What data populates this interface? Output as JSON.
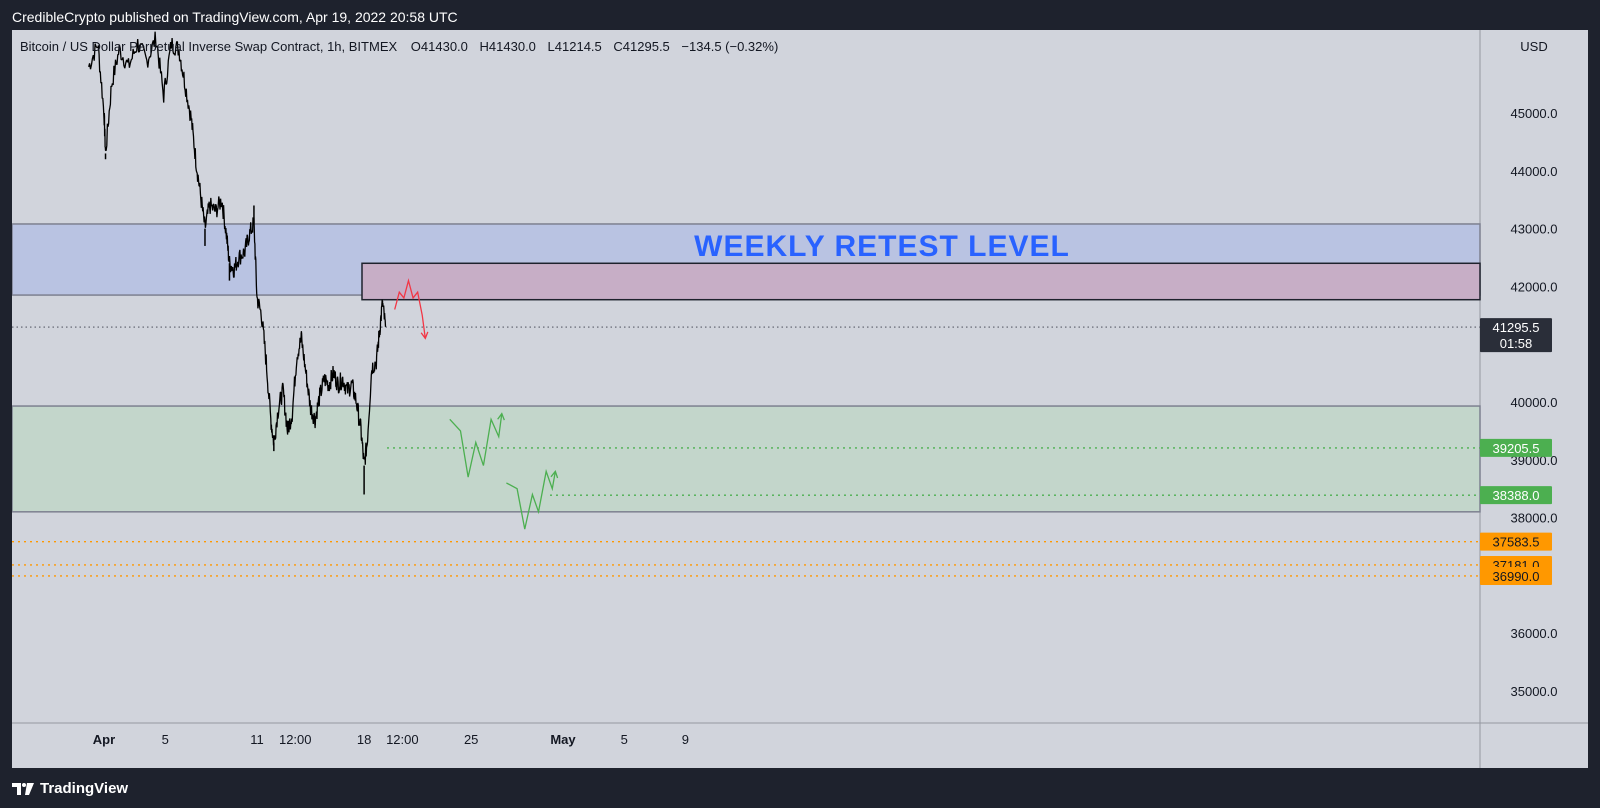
{
  "header": {
    "published": "CredibleCrypto published on TradingView.com, Apr 19, 2022 20:58 UTC"
  },
  "footer": {
    "brand": "TradingView"
  },
  "colors": {
    "background": "#d1d4dc",
    "chrome": "#1e222d",
    "weekly_zone": "#b9c3e2",
    "retest_box": "#c7aec6",
    "support_zone": "#c3d6cb",
    "green_label": "#4caf50",
    "orange_label": "#ff9800",
    "title_blue": "#2962ff",
    "candle": "#000000",
    "red_path": "#f23645",
    "green_path": "#4caf50"
  },
  "chart_data": {
    "type": "candlestick",
    "symbol_line": {
      "name": "Bitcoin / US Dollar Perpetual Inverse Swap Contract, 1h, BITMEX",
      "open": "O41430.0",
      "high": "H41430.0",
      "low": "L41214.5",
      "close": "C41295.5",
      "change": "−134.5 (−0.32%)"
    },
    "currency": "USD",
    "y_axis": {
      "range": [
        34400,
        46300
      ],
      "ticks": [
        "45000.0",
        "44000.0",
        "43000.0",
        "42000.0",
        "40000.0",
        "39000.0",
        "38000.0",
        "36000.0",
        "35000.0"
      ],
      "tick_values": [
        45000,
        44000,
        43000,
        42000,
        40000,
        39000,
        38000,
        36000,
        35000
      ]
    },
    "x_axis": {
      "labels": [
        "Apr",
        "5",
        "11",
        "12:00",
        "18",
        "12:00",
        "25",
        "May",
        "5",
        "9"
      ],
      "label_days": [
        1,
        5,
        11,
        13.5,
        18,
        20.5,
        25,
        31,
        35,
        39
      ],
      "bold": [
        "Apr",
        "May"
      ]
    },
    "zones": [
      {
        "name": "weekly",
        "from": 41850,
        "to": 43080
      },
      {
        "name": "retest-box",
        "from": 41770,
        "to": 42400
      },
      {
        "name": "support",
        "from": 38100,
        "to": 39930
      }
    ],
    "title_annotation": "WEEKLY RETEST LEVEL",
    "price_labels": [
      {
        "value": 41295.5,
        "text": "41295.5",
        "subtext": "01:58",
        "style": "current"
      },
      {
        "value": 39205.5,
        "text": "39205.5",
        "style": "green"
      },
      {
        "value": 38388.0,
        "text": "38388.0",
        "style": "green"
      },
      {
        "value": 37583.5,
        "text": "37583.5",
        "style": "orange"
      },
      {
        "value": 37181.0,
        "text": "37181.0",
        "style": "orange"
      },
      {
        "value": 36990.0,
        "text": "36990.0",
        "style": "orange"
      }
    ],
    "price_path": [
      {
        "d": 0.0,
        "p": 45800
      },
      {
        "d": 0.6,
        "p": 46200
      },
      {
        "d": 1.0,
        "p": 45000
      },
      {
        "d": 1.1,
        "p": 44300
      },
      {
        "d": 1.5,
        "p": 45500
      },
      {
        "d": 2.0,
        "p": 46100
      },
      {
        "d": 2.6,
        "p": 45800
      },
      {
        "d": 3.2,
        "p": 46200
      },
      {
        "d": 3.8,
        "p": 45900
      },
      {
        "d": 4.4,
        "p": 46300
      },
      {
        "d": 4.9,
        "p": 45300
      },
      {
        "d": 5.4,
        "p": 46200
      },
      {
        "d": 5.9,
        "p": 46100
      },
      {
        "d": 6.3,
        "p": 45500
      },
      {
        "d": 6.7,
        "p": 44900
      },
      {
        "d": 7.0,
        "p": 44200
      },
      {
        "d": 7.3,
        "p": 43600
      },
      {
        "d": 7.6,
        "p": 43000
      },
      {
        "d": 7.9,
        "p": 43400
      },
      {
        "d": 8.3,
        "p": 43300
      },
      {
        "d": 8.7,
        "p": 43500
      },
      {
        "d": 9.0,
        "p": 42900
      },
      {
        "d": 9.2,
        "p": 42400
      },
      {
        "d": 9.5,
        "p": 42300
      },
      {
        "d": 9.8,
        "p": 42500
      },
      {
        "d": 10.2,
        "p": 42600
      },
      {
        "d": 10.5,
        "p": 42900
      },
      {
        "d": 10.8,
        "p": 43100
      },
      {
        "d": 11.0,
        "p": 41800
      },
      {
        "d": 11.3,
        "p": 41500
      },
      {
        "d": 11.6,
        "p": 40700
      },
      {
        "d": 11.9,
        "p": 39700
      },
      {
        "d": 12.1,
        "p": 39300
      },
      {
        "d": 12.4,
        "p": 39900
      },
      {
        "d": 12.7,
        "p": 40200
      },
      {
        "d": 13.0,
        "p": 39500
      },
      {
        "d": 13.3,
        "p": 39800
      },
      {
        "d": 13.6,
        "p": 40800
      },
      {
        "d": 13.9,
        "p": 41100
      },
      {
        "d": 14.2,
        "p": 40500
      },
      {
        "d": 14.5,
        "p": 39900
      },
      {
        "d": 14.8,
        "p": 39700
      },
      {
        "d": 15.1,
        "p": 40100
      },
      {
        "d": 15.4,
        "p": 40400
      },
      {
        "d": 15.7,
        "p": 40300
      },
      {
        "d": 16.0,
        "p": 40500
      },
      {
        "d": 16.3,
        "p": 40300
      },
      {
        "d": 16.6,
        "p": 40400
      },
      {
        "d": 16.9,
        "p": 40200
      },
      {
        "d": 17.2,
        "p": 40300
      },
      {
        "d": 17.5,
        "p": 40000
      },
      {
        "d": 17.8,
        "p": 39500
      },
      {
        "d": 18.0,
        "p": 38900
      },
      {
        "d": 18.2,
        "p": 39300
      },
      {
        "d": 18.5,
        "p": 40600
      },
      {
        "d": 18.8,
        "p": 40700
      },
      {
        "d": 19.0,
        "p": 41200
      },
      {
        "d": 19.2,
        "p": 41700
      },
      {
        "d": 19.4,
        "p": 41300
      }
    ],
    "price_high_low_marks": [
      {
        "d": 1.1,
        "p": 44200
      },
      {
        "d": 7.6,
        "p": 42700
      },
      {
        "d": 9.2,
        "p": 42100
      },
      {
        "d": 10.8,
        "p": 43400
      },
      {
        "d": 12.1,
        "p": 39150
      },
      {
        "d": 13.9,
        "p": 41200
      },
      {
        "d": 14.8,
        "p": 39600
      },
      {
        "d": 18.0,
        "p": 38400
      },
      {
        "d": 19.2,
        "p": 41750
      }
    ],
    "projection_red": [
      {
        "d": 20.0,
        "p": 41600
      },
      {
        "d": 20.3,
        "p": 41900
      },
      {
        "d": 20.6,
        "p": 41800
      },
      {
        "d": 20.9,
        "p": 42100
      },
      {
        "d": 21.2,
        "p": 41800
      },
      {
        "d": 21.5,
        "p": 41900
      },
      {
        "d": 21.8,
        "p": 41500
      },
      {
        "d": 22.0,
        "p": 41100
      }
    ],
    "projection_green_1": [
      {
        "d": 23.6,
        "p": 39700
      },
      {
        "d": 24.3,
        "p": 39500
      },
      {
        "d": 24.8,
        "p": 38700
      },
      {
        "d": 25.3,
        "p": 39300
      },
      {
        "d": 25.8,
        "p": 38900
      },
      {
        "d": 26.3,
        "p": 39700
      },
      {
        "d": 26.8,
        "p": 39400
      },
      {
        "d": 27.0,
        "p": 39800
      }
    ],
    "projection_green_2": [
      {
        "d": 27.3,
        "p": 38600
      },
      {
        "d": 28.0,
        "p": 38500
      },
      {
        "d": 28.5,
        "p": 37800
      },
      {
        "d": 29.0,
        "p": 38400
      },
      {
        "d": 29.4,
        "p": 38100
      },
      {
        "d": 29.9,
        "p": 38800
      },
      {
        "d": 30.3,
        "p": 38500
      },
      {
        "d": 30.5,
        "p": 38800
      }
    ]
  }
}
